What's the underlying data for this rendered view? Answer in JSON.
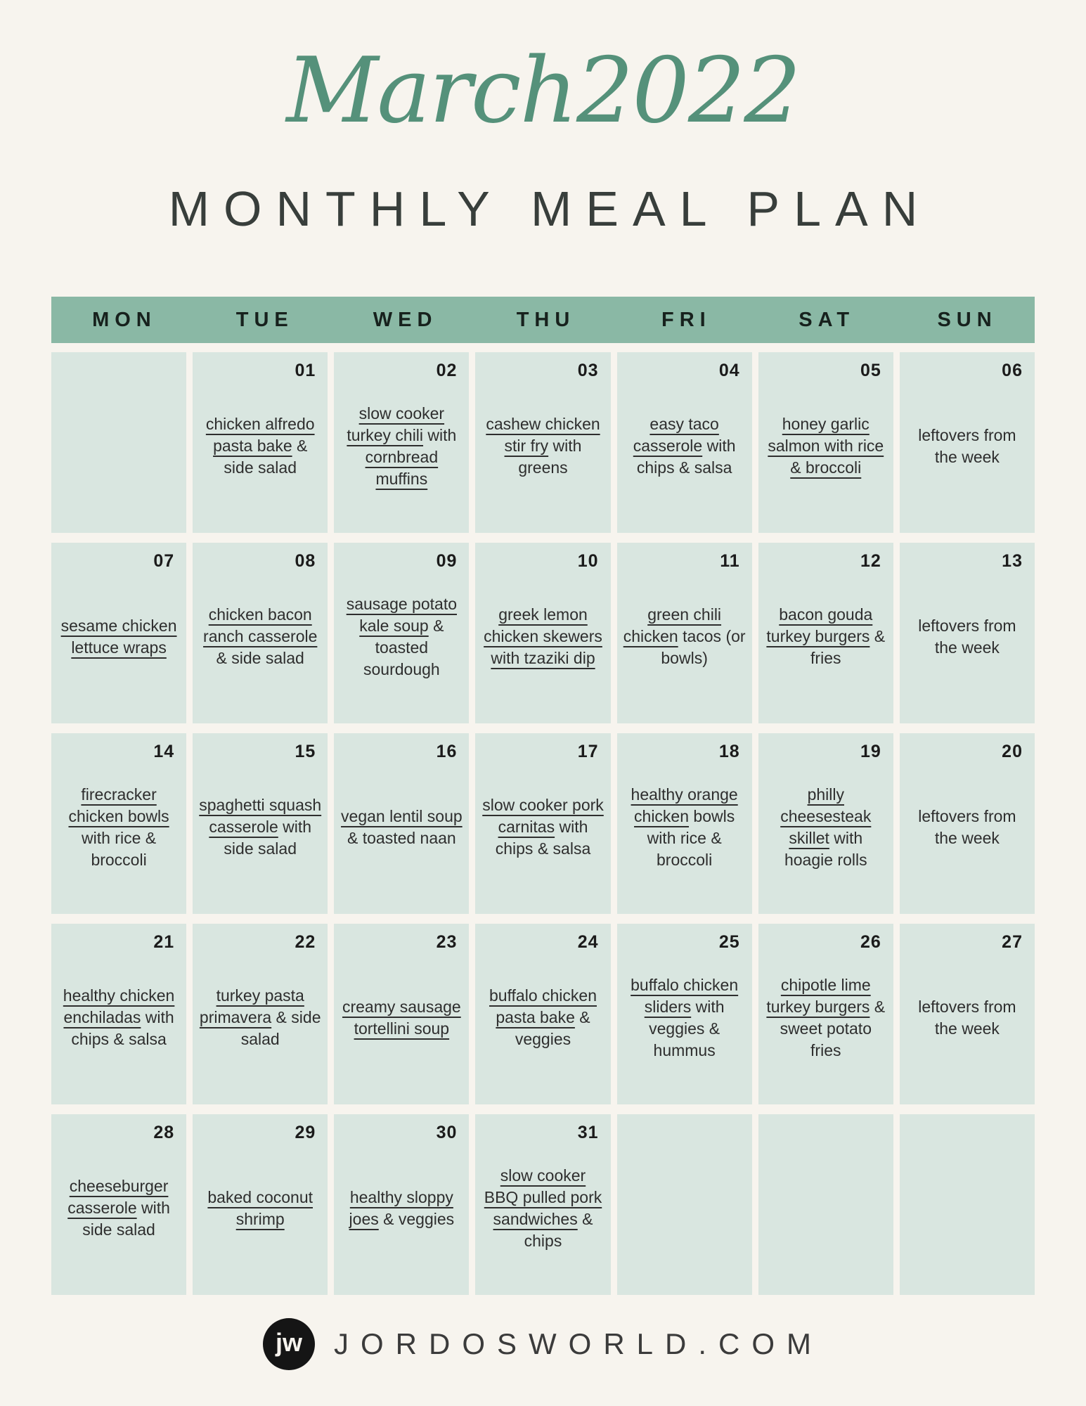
{
  "header": {
    "script_title": "March2022",
    "main_title": "MONTHLY MEAL PLAN"
  },
  "colors": {
    "background": "#f7f4ee",
    "header_green": "#8ab8a5",
    "cell_mint": "#d9e6e0",
    "script_green": "#55917a",
    "text_dark": "#2e2e2e"
  },
  "calendar": {
    "days": [
      "MON",
      "TUE",
      "WED",
      "THU",
      "FRI",
      "SAT",
      "SUN"
    ],
    "weeks": [
      [
        {
          "num": "",
          "segments": []
        },
        {
          "num": "01",
          "segments": [
            {
              "t": "chicken alfredo pasta bake",
              "u": true
            },
            {
              "t": " & side salad",
              "u": false
            }
          ]
        },
        {
          "num": "02",
          "segments": [
            {
              "t": "slow cooker turkey chili",
              "u": true
            },
            {
              "t": " with ",
              "u": false
            },
            {
              "t": "cornbread muffins",
              "u": true
            }
          ]
        },
        {
          "num": "03",
          "segments": [
            {
              "t": "cashew chicken stir fry",
              "u": true
            },
            {
              "t": " with greens",
              "u": false
            }
          ]
        },
        {
          "num": "04",
          "segments": [
            {
              "t": "easy taco casserole",
              "u": true
            },
            {
              "t": " with chips & salsa",
              "u": false
            }
          ]
        },
        {
          "num": "05",
          "segments": [
            {
              "t": "honey garlic salmon with rice & broccoli",
              "u": true
            }
          ]
        },
        {
          "num": "06",
          "segments": [
            {
              "t": "leftovers from the week",
              "u": false
            }
          ]
        }
      ],
      [
        {
          "num": "07",
          "segments": [
            {
              "t": "sesame chicken lettuce wraps",
              "u": true
            }
          ]
        },
        {
          "num": "08",
          "segments": [
            {
              "t": "chicken bacon ranch casserole",
              "u": true
            },
            {
              "t": " & side salad",
              "u": false
            }
          ]
        },
        {
          "num": "09",
          "segments": [
            {
              "t": "sausage potato kale soup",
              "u": true
            },
            {
              "t": " & toasted sourdough",
              "u": false
            }
          ]
        },
        {
          "num": "10",
          "segments": [
            {
              "t": "greek lemon chicken skewers with tzaziki dip",
              "u": true
            }
          ]
        },
        {
          "num": "11",
          "segments": [
            {
              "t": "green chili chicken",
              "u": true
            },
            {
              "t": " tacos (or bowls)",
              "u": false
            }
          ]
        },
        {
          "num": "12",
          "segments": [
            {
              "t": "bacon gouda turkey burgers",
              "u": true
            },
            {
              "t": " & fries",
              "u": false
            }
          ]
        },
        {
          "num": "13",
          "segments": [
            {
              "t": "leftovers from the week",
              "u": false
            }
          ]
        }
      ],
      [
        {
          "num": "14",
          "segments": [
            {
              "t": "firecracker chicken bowls",
              "u": true
            },
            {
              "t": " with rice & broccoli",
              "u": false
            }
          ]
        },
        {
          "num": "15",
          "segments": [
            {
              "t": "spaghetti squash casserole",
              "u": true
            },
            {
              "t": " with side salad",
              "u": false
            }
          ]
        },
        {
          "num": "16",
          "segments": [
            {
              "t": "vegan lentil soup",
              "u": true
            },
            {
              "t": " & toasted naan",
              "u": false
            }
          ]
        },
        {
          "num": "17",
          "segments": [
            {
              "t": "slow cooker pork carnitas",
              "u": true
            },
            {
              "t": " with chips & salsa",
              "u": false
            }
          ]
        },
        {
          "num": "18",
          "segments": [
            {
              "t": "healthy orange chicken",
              "u": true
            },
            {
              "t": " bowls with rice & broccoli",
              "u": false
            }
          ]
        },
        {
          "num": "19",
          "segments": [
            {
              "t": "philly cheesesteak skillet",
              "u": true
            },
            {
              "t": " with hoagie rolls",
              "u": false
            }
          ]
        },
        {
          "num": "20",
          "segments": [
            {
              "t": "leftovers from the week",
              "u": false
            }
          ]
        }
      ],
      [
        {
          "num": "21",
          "segments": [
            {
              "t": "healthy chicken enchiladas",
              "u": true
            },
            {
              "t": " with chips & salsa",
              "u": false
            }
          ]
        },
        {
          "num": "22",
          "segments": [
            {
              "t": "turkey pasta primavera",
              "u": true
            },
            {
              "t": " & side salad",
              "u": false
            }
          ]
        },
        {
          "num": "23",
          "segments": [
            {
              "t": "creamy sausage tortellini soup",
              "u": true
            }
          ]
        },
        {
          "num": "24",
          "segments": [
            {
              "t": "buffalo chicken pasta bake",
              "u": true
            },
            {
              "t": " & veggies",
              "u": false
            }
          ]
        },
        {
          "num": "25",
          "segments": [
            {
              "t": "buffalo chicken sliders",
              "u": true
            },
            {
              "t": " with veggies & hummus",
              "u": false
            }
          ]
        },
        {
          "num": "26",
          "segments": [
            {
              "t": "chipotle lime turkey burgers",
              "u": true
            },
            {
              "t": " & sweet potato fries",
              "u": false
            }
          ]
        },
        {
          "num": "27",
          "segments": [
            {
              "t": "leftovers from the week",
              "u": false
            }
          ]
        }
      ],
      [
        {
          "num": "28",
          "segments": [
            {
              "t": "cheeseburger casserole",
              "u": true
            },
            {
              "t": " with side salad",
              "u": false
            }
          ]
        },
        {
          "num": "29",
          "segments": [
            {
              "t": "baked coconut shrimp",
              "u": true
            }
          ]
        },
        {
          "num": "30",
          "segments": [
            {
              "t": "healthy sloppy joes",
              "u": true
            },
            {
              "t": " & veggies",
              "u": false
            }
          ]
        },
        {
          "num": "31",
          "segments": [
            {
              "t": "slow cooker BBQ pulled pork sandwiches",
              "u": true
            },
            {
              "t": " & chips",
              "u": false
            }
          ]
        },
        {
          "num": "",
          "segments": []
        },
        {
          "num": "",
          "segments": []
        },
        {
          "num": "",
          "segments": []
        }
      ]
    ]
  },
  "footer": {
    "logo_text": "jw",
    "site": "JORDOSWORLD.COM"
  }
}
